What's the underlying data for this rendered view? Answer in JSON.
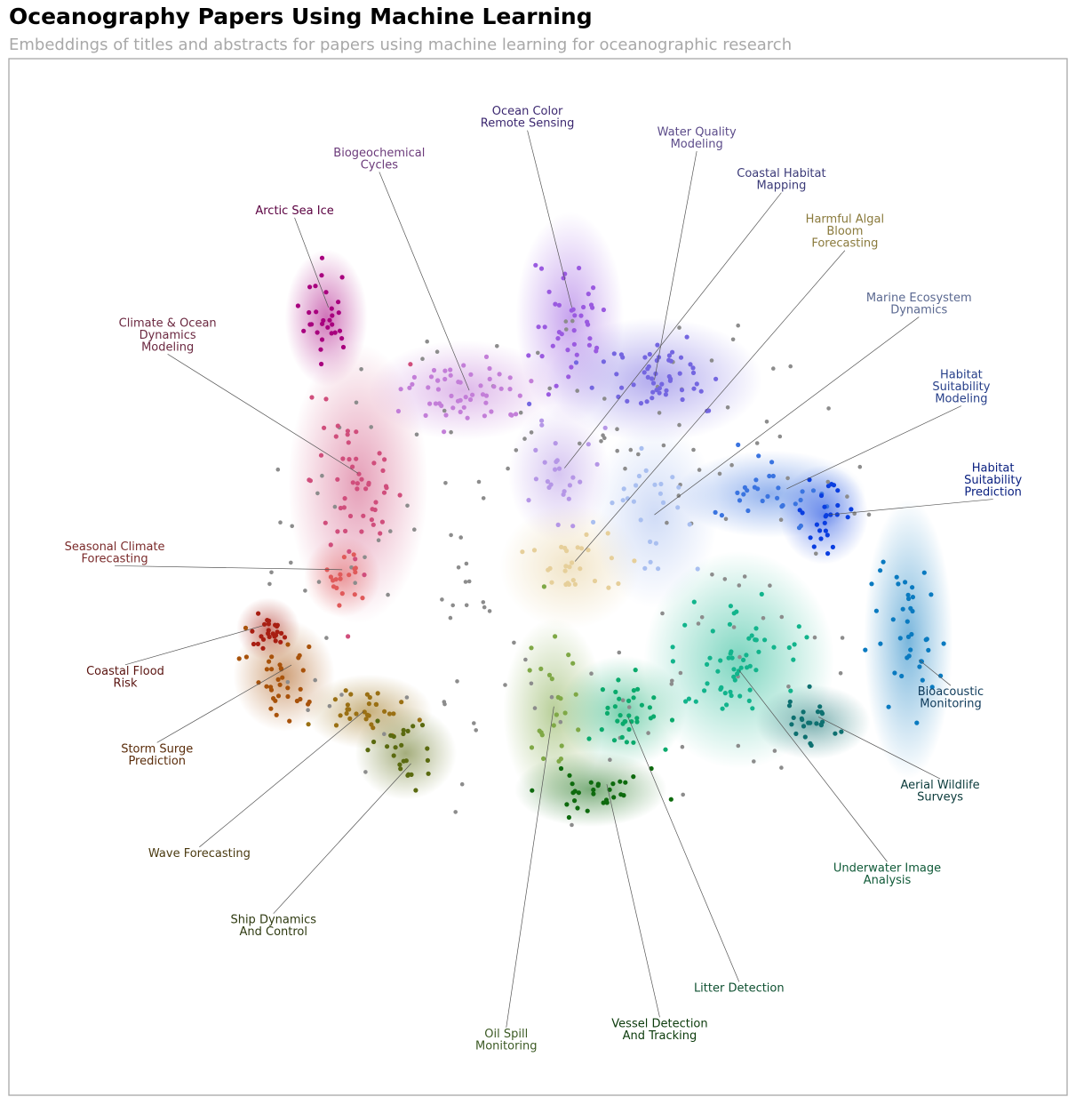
{
  "chart_data": {
    "type": "scatter",
    "title": "Oceanography Papers Using Machine Learning",
    "subtitle": "Embeddings of titles and abstracts for papers using machine learning for oceanographic research",
    "xlim": [
      0,
      1
    ],
    "ylim": [
      0,
      1
    ],
    "grid": false,
    "legend": "none",
    "clusters": [
      {
        "name": "Arctic Sea Ice",
        "label_lines": [
          "Arctic Sea Ice"
        ],
        "color": "#a8007e",
        "label_color": "#5a0040",
        "center": [
          0.3,
          0.75
        ],
        "spread": [
          0.013,
          0.022
        ],
        "count": 30,
        "label_xy": [
          0.27,
          0.85
        ],
        "anchor": [
          0.302,
          0.76
        ]
      },
      {
        "name": "Biogeochemical Cycles",
        "label_lines": [
          "Biogeochemical",
          "Cycles"
        ],
        "color": "#c37ed8",
        "label_color": "#6b3a7a",
        "center": [
          0.43,
          0.68
        ],
        "spread": [
          0.03,
          0.016
        ],
        "count": 55,
        "label_xy": [
          0.35,
          0.9
        ],
        "anchor": [
          0.435,
          0.68
        ]
      },
      {
        "name": "Ocean Color Remote Sensing",
        "label_lines": [
          "Ocean Color",
          "Remote Sensing"
        ],
        "color": "#9a5ae0",
        "label_color": "#3c2870",
        "center": [
          0.53,
          0.75
        ],
        "spread": [
          0.017,
          0.034
        ],
        "count": 40,
        "label_xy": [
          0.49,
          0.94
        ],
        "anchor": [
          0.532,
          0.76
        ]
      },
      {
        "name": "Water Quality Modeling",
        "label_lines": [
          "Water Quality",
          "Modeling"
        ],
        "color": "#7466e0",
        "label_color": "#5c4c8a",
        "center": [
          0.61,
          0.69
        ],
        "spread": [
          0.034,
          0.02
        ],
        "count": 55,
        "label_xy": [
          0.65,
          0.92
        ],
        "anchor": [
          0.61,
          0.69
        ]
      },
      {
        "name": "Coastal Habitat Mapping",
        "label_lines": [
          "Coastal Habitat",
          "Mapping"
        ],
        "color": "#b596e6",
        "label_color": "#3b3a78",
        "center": [
          0.52,
          0.6
        ],
        "spread": [
          0.016,
          0.022
        ],
        "count": 25,
        "label_xy": [
          0.73,
          0.88
        ],
        "anchor": [
          0.525,
          0.605
        ]
      },
      {
        "name": "Harmful Algal Bloom Forecasting",
        "label_lines": [
          "Harmful Algal",
          "Bloom",
          "Forecasting"
        ],
        "color": "#e6cf9a",
        "label_color": "#8a7a3c",
        "center": [
          0.53,
          0.51
        ],
        "spread": [
          0.022,
          0.02
        ],
        "count": 28,
        "label_xy": [
          0.79,
          0.83
        ],
        "anchor": [
          0.535,
          0.515
        ]
      },
      {
        "name": "Marine Ecosystem Dynamics",
        "label_lines": [
          "Marine Ecosystem",
          "Dynamics"
        ],
        "color": "#a9bff0",
        "label_color": "#5a6890",
        "center": [
          0.61,
          0.56
        ],
        "spread": [
          0.02,
          0.03
        ],
        "count": 25,
        "label_xy": [
          0.86,
          0.76
        ],
        "anchor": [
          0.61,
          0.56
        ]
      },
      {
        "name": "Habitat Suitability Modeling",
        "label_lines": [
          "Habitat",
          "Suitability",
          "Modeling"
        ],
        "color": "#3a74e0",
        "label_color": "#28408a",
        "center": [
          0.72,
          0.58
        ],
        "spread": [
          0.03,
          0.014
        ],
        "count": 30,
        "label_xy": [
          0.9,
          0.68
        ],
        "anchor": [
          0.735,
          0.585
        ]
      },
      {
        "name": "Habitat Suitability Prediction",
        "label_lines": [
          "Habitat",
          "Suitability",
          "Prediction"
        ],
        "color": "#0a3ee0",
        "label_color": "#0a2080",
        "center": [
          0.77,
          0.56
        ],
        "spread": [
          0.014,
          0.016
        ],
        "count": 26,
        "label_xy": [
          0.93,
          0.59
        ],
        "anchor": [
          0.775,
          0.56
        ]
      },
      {
        "name": "Climate & Ocean Dynamics Modeling",
        "label_lines": [
          "Climate & Ocean",
          "Dynamics",
          "Modeling"
        ],
        "color": "#d04e7c",
        "label_color": "#6b2840",
        "center": [
          0.33,
          0.59
        ],
        "spread": [
          0.022,
          0.045
        ],
        "count": 55,
        "label_xy": [
          0.15,
          0.73
        ],
        "anchor": [
          0.33,
          0.6
        ]
      },
      {
        "name": "Seasonal Climate Forecasting",
        "label_lines": [
          "Seasonal Climate",
          "Forecasting"
        ],
        "color": "#e05a5a",
        "label_color": "#7a2a2a",
        "center": [
          0.315,
          0.5
        ],
        "spread": [
          0.012,
          0.013
        ],
        "count": 18,
        "label_xy": [
          0.1,
          0.52
        ],
        "anchor": [
          0.315,
          0.507
        ]
      },
      {
        "name": "Coastal Flood Risk",
        "label_lines": [
          "Coastal Flood",
          "Risk"
        ],
        "color": "#a81e12",
        "label_color": "#5a1410",
        "center": [
          0.245,
          0.45
        ],
        "spread": [
          0.01,
          0.01
        ],
        "count": 25,
        "label_xy": [
          0.11,
          0.4
        ],
        "anchor": [
          0.24,
          0.453
        ]
      },
      {
        "name": "Storm Surge Prediction",
        "label_lines": [
          "Storm Surge",
          "Prediction"
        ],
        "color": "#a8520a",
        "label_color": "#5a2c0a",
        "center": [
          0.26,
          0.405
        ],
        "spread": [
          0.016,
          0.018
        ],
        "count": 35,
        "label_xy": [
          0.14,
          0.325
        ],
        "anchor": [
          0.267,
          0.415
        ]
      },
      {
        "name": "Wave Forecasting",
        "label_lines": [
          "Wave Forecasting"
        ],
        "color": "#9a7014",
        "label_color": "#4a3a10",
        "center": [
          0.34,
          0.37
        ],
        "spread": [
          0.02,
          0.012
        ],
        "count": 30,
        "label_xy": [
          0.18,
          0.23
        ],
        "anchor": [
          0.335,
          0.37
        ]
      },
      {
        "name": "Ship Dynamics And Control",
        "label_lines": [
          "Ship Dynamics",
          "And Control"
        ],
        "color": "#5a6a10",
        "label_color": "#2e3a10",
        "center": [
          0.375,
          0.33
        ],
        "spread": [
          0.016,
          0.015
        ],
        "count": 25,
        "label_xy": [
          0.25,
          0.16
        ],
        "anchor": [
          0.38,
          0.32
        ]
      },
      {
        "name": "Oil Spill Monitoring",
        "label_lines": [
          "Oil Spill",
          "Monitoring"
        ],
        "color": "#7fa846",
        "label_color": "#3c5a24",
        "center": [
          0.515,
          0.37
        ],
        "spread": [
          0.016,
          0.03
        ],
        "count": 24,
        "label_xy": [
          0.47,
          0.05
        ],
        "anchor": [
          0.515,
          0.375
        ]
      },
      {
        "name": "Vessel Detection And Tracking",
        "label_lines": [
          "Vessel Detection",
          "And Tracking"
        ],
        "color": "#0e6a0e",
        "label_color": "#0a3a0a",
        "center": [
          0.55,
          0.295
        ],
        "spread": [
          0.024,
          0.012
        ],
        "count": 30,
        "label_xy": [
          0.615,
          0.06
        ],
        "anchor": [
          0.565,
          0.3
        ]
      },
      {
        "name": "Litter Detection",
        "label_lines": [
          "Litter Detection"
        ],
        "color": "#0aaa6c",
        "label_color": "#0e5030",
        "center": [
          0.58,
          0.37
        ],
        "spread": [
          0.02,
          0.018
        ],
        "count": 35,
        "label_xy": [
          0.69,
          0.1
        ],
        "anchor": [
          0.585,
          0.365
        ]
      },
      {
        "name": "Underwater Image Analysis",
        "label_lines": [
          "Underwater Image",
          "Analysis"
        ],
        "color": "#12b48c",
        "label_color": "#105a38",
        "center": [
          0.69,
          0.42
        ],
        "spread": [
          0.03,
          0.035
        ],
        "count": 60,
        "label_xy": [
          0.83,
          0.21
        ],
        "anchor": [
          0.69,
          0.41
        ]
      },
      {
        "name": "Aerial Wildlife Surveys",
        "label_lines": [
          "Aerial Wildlife",
          "Surveys"
        ],
        "color": "#0e7070",
        "label_color": "#0a3a3a",
        "center": [
          0.76,
          0.36
        ],
        "spread": [
          0.018,
          0.012
        ],
        "count": 25,
        "label_xy": [
          0.88,
          0.29
        ],
        "anchor": [
          0.765,
          0.365
        ]
      },
      {
        "name": "Bioacoustic Monitoring",
        "label_lines": [
          "Bioacoustic",
          "Monitoring"
        ],
        "color": "#0a7ac0",
        "label_color": "#0e3a5a",
        "center": [
          0.85,
          0.44
        ],
        "spread": [
          0.014,
          0.045
        ],
        "count": 40,
        "label_xy": [
          0.89,
          0.38
        ],
        "anchor": [
          0.86,
          0.42
        ]
      }
    ]
  }
}
